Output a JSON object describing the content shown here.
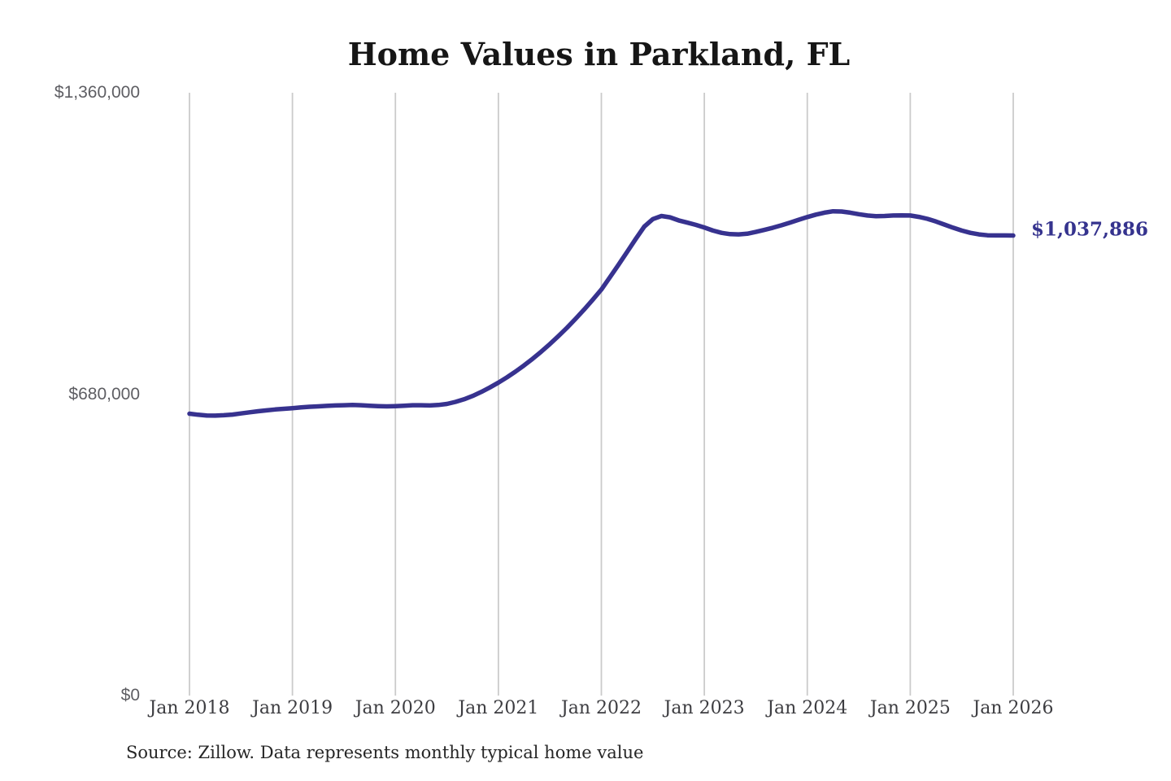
{
  "chart_data": {
    "type": "line",
    "title": "Home Values in Parkland, FL",
    "source_note": "Source: Zillow. Data represents monthly typical home value",
    "series_name": "Monthly typical home value",
    "unit": "USD",
    "xlabel": "",
    "ylabel": "",
    "ylim": [
      0,
      1360000
    ],
    "grid": "vertical-only",
    "legend": "none",
    "x_ticks": [
      "Jan 2018",
      "Jan 2019",
      "Jan 2020",
      "Jan 2021",
      "Jan 2022",
      "Jan 2023",
      "Jan 2024",
      "Jan 2025",
      "Jan 2026"
    ],
    "y_ticks": [
      {
        "label": "$0",
        "value": 0
      },
      {
        "label": "$680,000",
        "value": 680000
      },
      {
        "label": "$1,360,000",
        "value": 1360000
      }
    ],
    "end_label": "$1,037,886",
    "final_value": 1037886,
    "colors": {
      "line": "#37328f",
      "end_label": "#35338e",
      "gridline": "#cbcbcb",
      "title": "#161616",
      "y_tick": "#5e5e63",
      "x_tick": "#3d3d41",
      "source": "#262626",
      "background": "#ffffff"
    },
    "years": [
      {
        "year": 2018,
        "monthly_values": [
          636000,
          633500,
          632000,
          631500,
          632500,
          634000,
          636500,
          639000,
          641500,
          643500,
          645500,
          647000
        ]
      },
      {
        "year": 2019,
        "monthly_values": [
          648500,
          650000,
          651500,
          652500,
          653500,
          654500,
          655000,
          655500,
          655000,
          654000,
          653000,
          652500
        ]
      },
      {
        "year": 2020,
        "monthly_values": [
          653000,
          654000,
          655000,
          655000,
          654500,
          655500,
          658000,
          662500,
          668500,
          676000,
          685000,
          695000
        ]
      },
      {
        "year": 2021,
        "monthly_values": [
          706000,
          718000,
          731000,
          745000,
          760000,
          776000,
          793000,
          811000,
          830000,
          850000,
          871000,
          893000
        ]
      },
      {
        "year": 2022,
        "monthly_values": [
          916000,
          944000,
          972000,
          1001000,
          1030000,
          1058000,
          1075000,
          1082000,
          1079000,
          1072000,
          1067000,
          1062000
        ]
      },
      {
        "year": 2023,
        "monthly_values": [
          1056000,
          1049000,
          1044000,
          1041000,
          1040500,
          1042000,
          1046000,
          1050500,
          1055500,
          1061000,
          1067000,
          1073500
        ]
      },
      {
        "year": 2024,
        "monthly_values": [
          1079500,
          1085000,
          1089500,
          1092500,
          1092000,
          1089500,
          1086000,
          1083000,
          1081500,
          1082000,
          1083000,
          1083500
        ]
      },
      {
        "year": 2025,
        "monthly_values": [
          1083000,
          1080000,
          1075500,
          1069500,
          1062500,
          1055500,
          1049000,
          1044000,
          1040500,
          1038500,
          1038000,
          1038000
        ]
      },
      {
        "year": 2026,
        "monthly_values": [
          1037886
        ]
      }
    ]
  }
}
